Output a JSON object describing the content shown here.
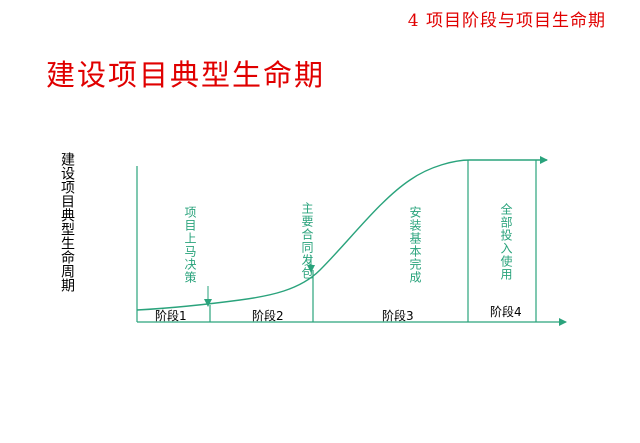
{
  "header": {
    "title": "4  项目阶段与项目生命期"
  },
  "page": {
    "title": "建设项目典型生命期"
  },
  "y_axis_label": "建设项目典型生命周期",
  "milestones": [
    {
      "text": "项目上马决策"
    },
    {
      "text": "主要合同发包"
    },
    {
      "text": "安装基本完成"
    },
    {
      "text": "全部投入使用"
    }
  ],
  "stages": [
    {
      "label": "阶段1"
    },
    {
      "label": "阶段2"
    },
    {
      "label": "阶段3"
    },
    {
      "label": "阶段4"
    }
  ],
  "colors": {
    "title": "#e00000",
    "line": "#2aa37c",
    "text": "#000000"
  }
}
